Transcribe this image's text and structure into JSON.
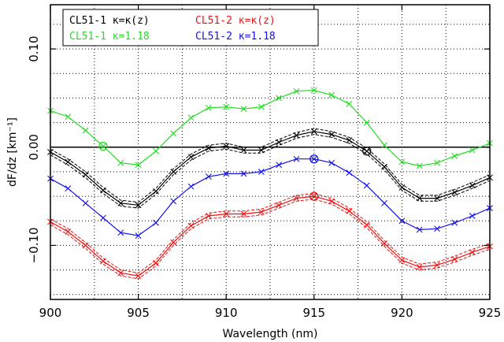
{
  "chart_data": {
    "type": "line",
    "xlabel": "Wavelength (nm)",
    "ylabel": "dF/dz [km⁻¹]",
    "xlim": [
      900,
      925
    ],
    "ylim": [
      -0.155,
      0.145
    ],
    "xticks": [
      900,
      905,
      910,
      915,
      920,
      925
    ],
    "xtick_labels": [
      "900",
      "905",
      "910",
      "915",
      "920",
      "925"
    ],
    "yticks": [
      0.1,
      0.0,
      -0.1
    ],
    "ytick_labels": [
      "0.10",
      "0.00",
      "−0.10"
    ],
    "grid": "dotted",
    "zero_line": 0,
    "legend_position": "top-left",
    "x": [
      900,
      901,
      902,
      903,
      904,
      905,
      906,
      907,
      908,
      909,
      910,
      911,
      912,
      913,
      914,
      915,
      916,
      917,
      918,
      919,
      920,
      921,
      922,
      923,
      924,
      925
    ],
    "series": [
      {
        "name": "CL51-1  κ=κ(z)",
        "color": "#000000",
        "band": 0.003,
        "values": [
          -0.005,
          -0.015,
          -0.028,
          -0.044,
          -0.057,
          -0.059,
          -0.045,
          -0.025,
          -0.01,
          -0.001,
          0.001,
          -0.003,
          -0.003,
          0.005,
          0.012,
          0.016,
          0.013,
          0.007,
          -0.004,
          -0.02,
          -0.041,
          -0.052,
          -0.052,
          -0.046,
          -0.039,
          -0.031
        ],
        "markers": "x"
      },
      {
        "name": "CL51-1  κ=1.18",
        "color": "#22dd22",
        "band": 0,
        "values": [
          0.037,
          0.031,
          0.017,
          0.001,
          -0.016,
          -0.018,
          -0.004,
          0.014,
          0.03,
          0.04,
          0.041,
          0.039,
          0.041,
          0.05,
          0.057,
          0.058,
          0.053,
          0.044,
          0.025,
          0.002,
          -0.015,
          -0.019,
          -0.016,
          -0.009,
          -0.003,
          0.004
        ],
        "markers": "x"
      },
      {
        "name": "CL51-2  κ=κ(z)",
        "color": "#ee1111",
        "band": 0.003,
        "values": [
          -0.076,
          -0.086,
          -0.1,
          -0.116,
          -0.128,
          -0.131,
          -0.118,
          -0.097,
          -0.08,
          -0.07,
          -0.068,
          -0.068,
          -0.066,
          -0.059,
          -0.052,
          -0.05,
          -0.055,
          -0.065,
          -0.079,
          -0.098,
          -0.115,
          -0.122,
          -0.12,
          -0.114,
          -0.107,
          -0.101
        ],
        "markers": "x"
      },
      {
        "name": "CL51-2  κ=1.18",
        "color": "#1111ee",
        "band": 0,
        "values": [
          -0.032,
          -0.042,
          -0.057,
          -0.072,
          -0.087,
          -0.09,
          -0.077,
          -0.055,
          -0.04,
          -0.03,
          -0.027,
          -0.027,
          -0.025,
          -0.018,
          -0.012,
          -0.012,
          -0.016,
          -0.026,
          -0.039,
          -0.057,
          -0.075,
          -0.084,
          -0.083,
          -0.077,
          -0.07,
          -0.062
        ],
        "markers": "x"
      }
    ],
    "circled_points": [
      {
        "series": 0,
        "x": 918,
        "y": -0.004
      },
      {
        "series": 1,
        "x": 903,
        "y": 0.001
      },
      {
        "series": 2,
        "x": 915,
        "y": -0.05
      },
      {
        "series": 3,
        "x": 915,
        "y": -0.012
      }
    ]
  }
}
